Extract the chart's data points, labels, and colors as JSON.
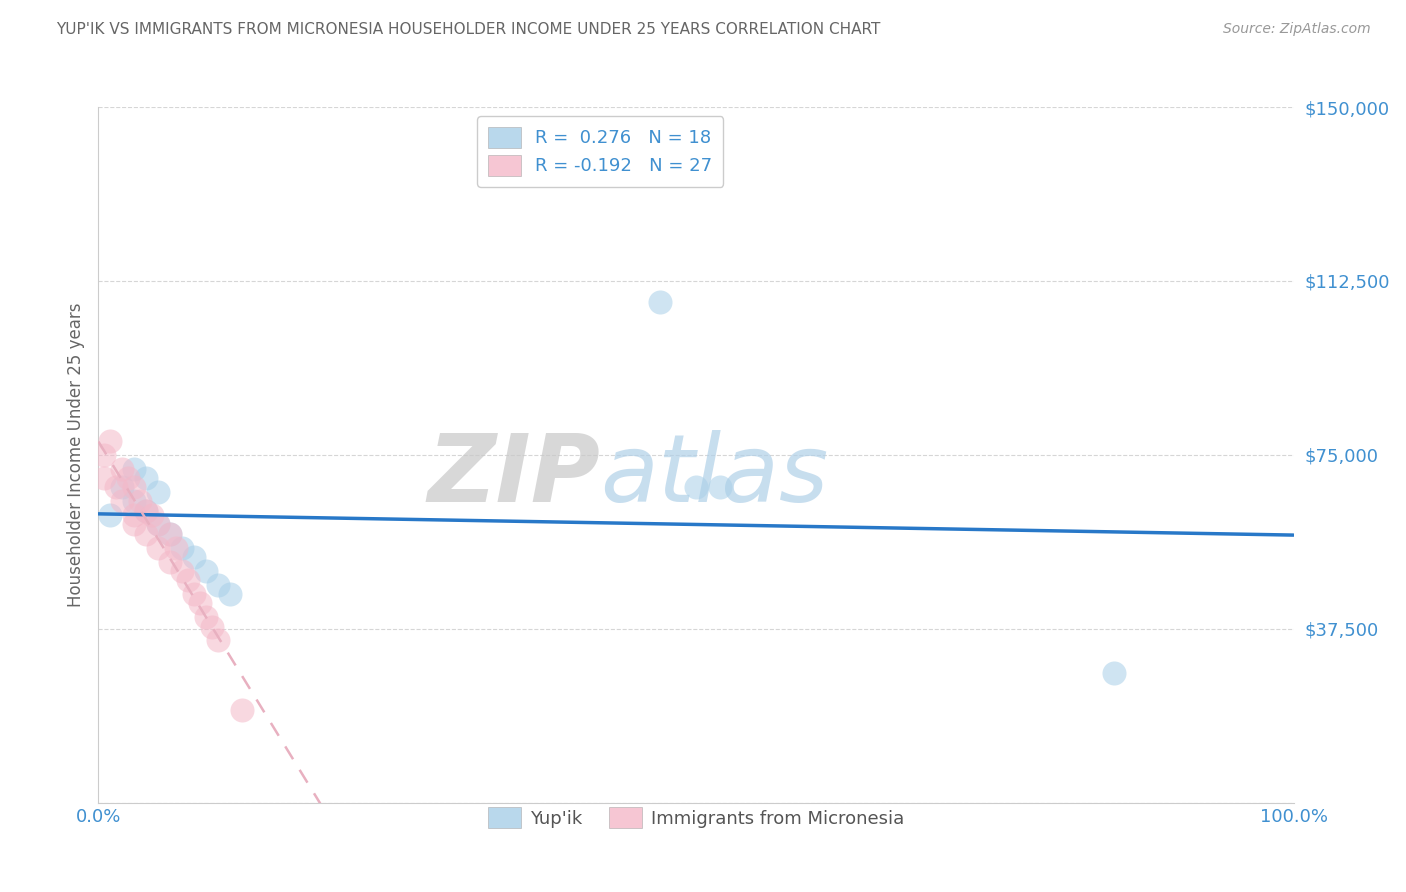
{
  "title": "YUP'IK VS IMMIGRANTS FROM MICRONESIA HOUSEHOLDER INCOME UNDER 25 YEARS CORRELATION CHART",
  "source": "Source: ZipAtlas.com",
  "ylabel": "Householder Income Under 25 years",
  "xlabel": "",
  "watermark": "ZIPatlas",
  "legend_r1": "R =  0.276   N = 18",
  "legend_r2": "R = -0.192   N = 27",
  "legend_label1": "Yup'ik",
  "legend_label2": "Immigrants from Micronesia",
  "yupik_color": "#a8cfe8",
  "micronesia_color": "#f4b8c8",
  "trend_blue": "#2878c8",
  "trend_pink": "#e8b0c0",
  "tick_color": "#4090d0",
  "ylim": [
    0,
    150000
  ],
  "xlim": [
    0,
    1.0
  ],
  "yticks": [
    0,
    37500,
    75000,
    112500,
    150000
  ],
  "ytick_labels": [
    "",
    "$37,500",
    "$75,000",
    "$112,500",
    "$150,000"
  ],
  "xtick_labels": [
    "0.0%",
    "100.0%"
  ],
  "background_color": "#ffffff",
  "yupik_x": [
    0.01,
    0.02,
    0.03,
    0.03,
    0.04,
    0.04,
    0.05,
    0.05,
    0.06,
    0.07,
    0.08,
    0.09,
    0.1,
    0.11,
    0.47,
    0.5,
    0.52,
    0.85
  ],
  "yupik_y": [
    62000,
    68000,
    72000,
    65000,
    70000,
    63000,
    67000,
    60000,
    58000,
    55000,
    53000,
    50000,
    47000,
    45000,
    108000,
    68000,
    68000,
    28000
  ],
  "micronesia_x": [
    0.005,
    0.005,
    0.01,
    0.015,
    0.02,
    0.02,
    0.025,
    0.03,
    0.03,
    0.03,
    0.035,
    0.04,
    0.04,
    0.045,
    0.05,
    0.05,
    0.06,
    0.06,
    0.065,
    0.07,
    0.075,
    0.08,
    0.085,
    0.09,
    0.095,
    0.1,
    0.12
  ],
  "micronesia_y": [
    75000,
    70000,
    78000,
    68000,
    72000,
    65000,
    70000,
    68000,
    62000,
    60000,
    65000,
    63000,
    58000,
    62000,
    60000,
    55000,
    58000,
    52000,
    55000,
    50000,
    48000,
    45000,
    43000,
    40000,
    38000,
    35000,
    20000
  ]
}
